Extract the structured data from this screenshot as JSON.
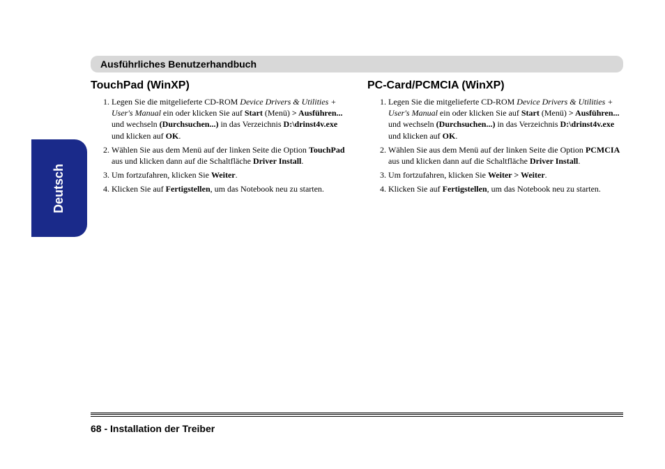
{
  "header": {
    "title": "Ausführliches Benutzerhandbuch"
  },
  "lang_tab": {
    "label": "Deutsch",
    "bg_color": "#1a2a8a",
    "text_color": "#ffffff"
  },
  "left": {
    "title": "TouchPad (WinXP)",
    "steps": [
      {
        "pre": "Legen Sie die mitgelieferte CD-ROM ",
        "cd_name": "Device Drivers & Utilities + User's Manual",
        "mid1": " ein oder klicken Sie auf ",
        "start": "Start",
        "mid2": " (Menü) ",
        "gt": "> Ausführen...",
        "mid3": " und wechseln ",
        "browse": "(Durchsuchen...)",
        "mid4": " in das Verzeichnis ",
        "path": "D:\\drinst4v.exe",
        "mid5": " und klicken auf ",
        "ok": "OK",
        "tail": "."
      },
      {
        "pre": "Wählen Sie aus dem Menü auf der linken Seite die Option ",
        "opt": "TouchPad",
        "mid": " aus und klicken dann auf die Schaltfläche ",
        "btn": "Driver Install",
        "tail": "."
      },
      {
        "pre": "Um fortzufahren, klicken Sie ",
        "btn": "Weiter",
        "tail": "."
      },
      {
        "pre": "Klicken Sie auf ",
        "btn": "Fertigstellen",
        "tail": ", um das Notebook  neu zu starten."
      }
    ]
  },
  "right": {
    "title": "PC-Card/PCMCIA (WinXP)",
    "steps": [
      {
        "pre": "Legen Sie die mitgelieferte CD-ROM ",
        "cd_name": "Device Drivers & Utilities + User's Manual",
        "mid1": " ein oder klicken Sie auf ",
        "start": "Start",
        "mid2": " (Menü) ",
        "gt": "> Ausführen...",
        "mid3": " und wechseln ",
        "browse": "(Durchsuchen...)",
        "mid4": " in das Verzeichnis ",
        "path": "D:\\drinst4v.exe",
        "mid5": " und klicken auf ",
        "ok": "OK",
        "tail": "."
      },
      {
        "pre": "Wählen Sie aus dem Menü auf der linken Seite die Option ",
        "opt": "PCMCIA",
        "mid": " aus und klicken dann auf die Schaltfläche ",
        "btn": "Driver Install",
        "tail": "."
      },
      {
        "pre": "Um fortzufahren, klicken Sie ",
        "btn": "Weiter > Weiter",
        "tail": "."
      },
      {
        "pre": "Klicken Sie auf ",
        "btn": "Fertigstellen",
        "tail": ", um das Notebook  neu zu starten."
      }
    ]
  },
  "footer": {
    "page_num": "68",
    "sep": " -  ",
    "section": "Installation der Treiber"
  }
}
